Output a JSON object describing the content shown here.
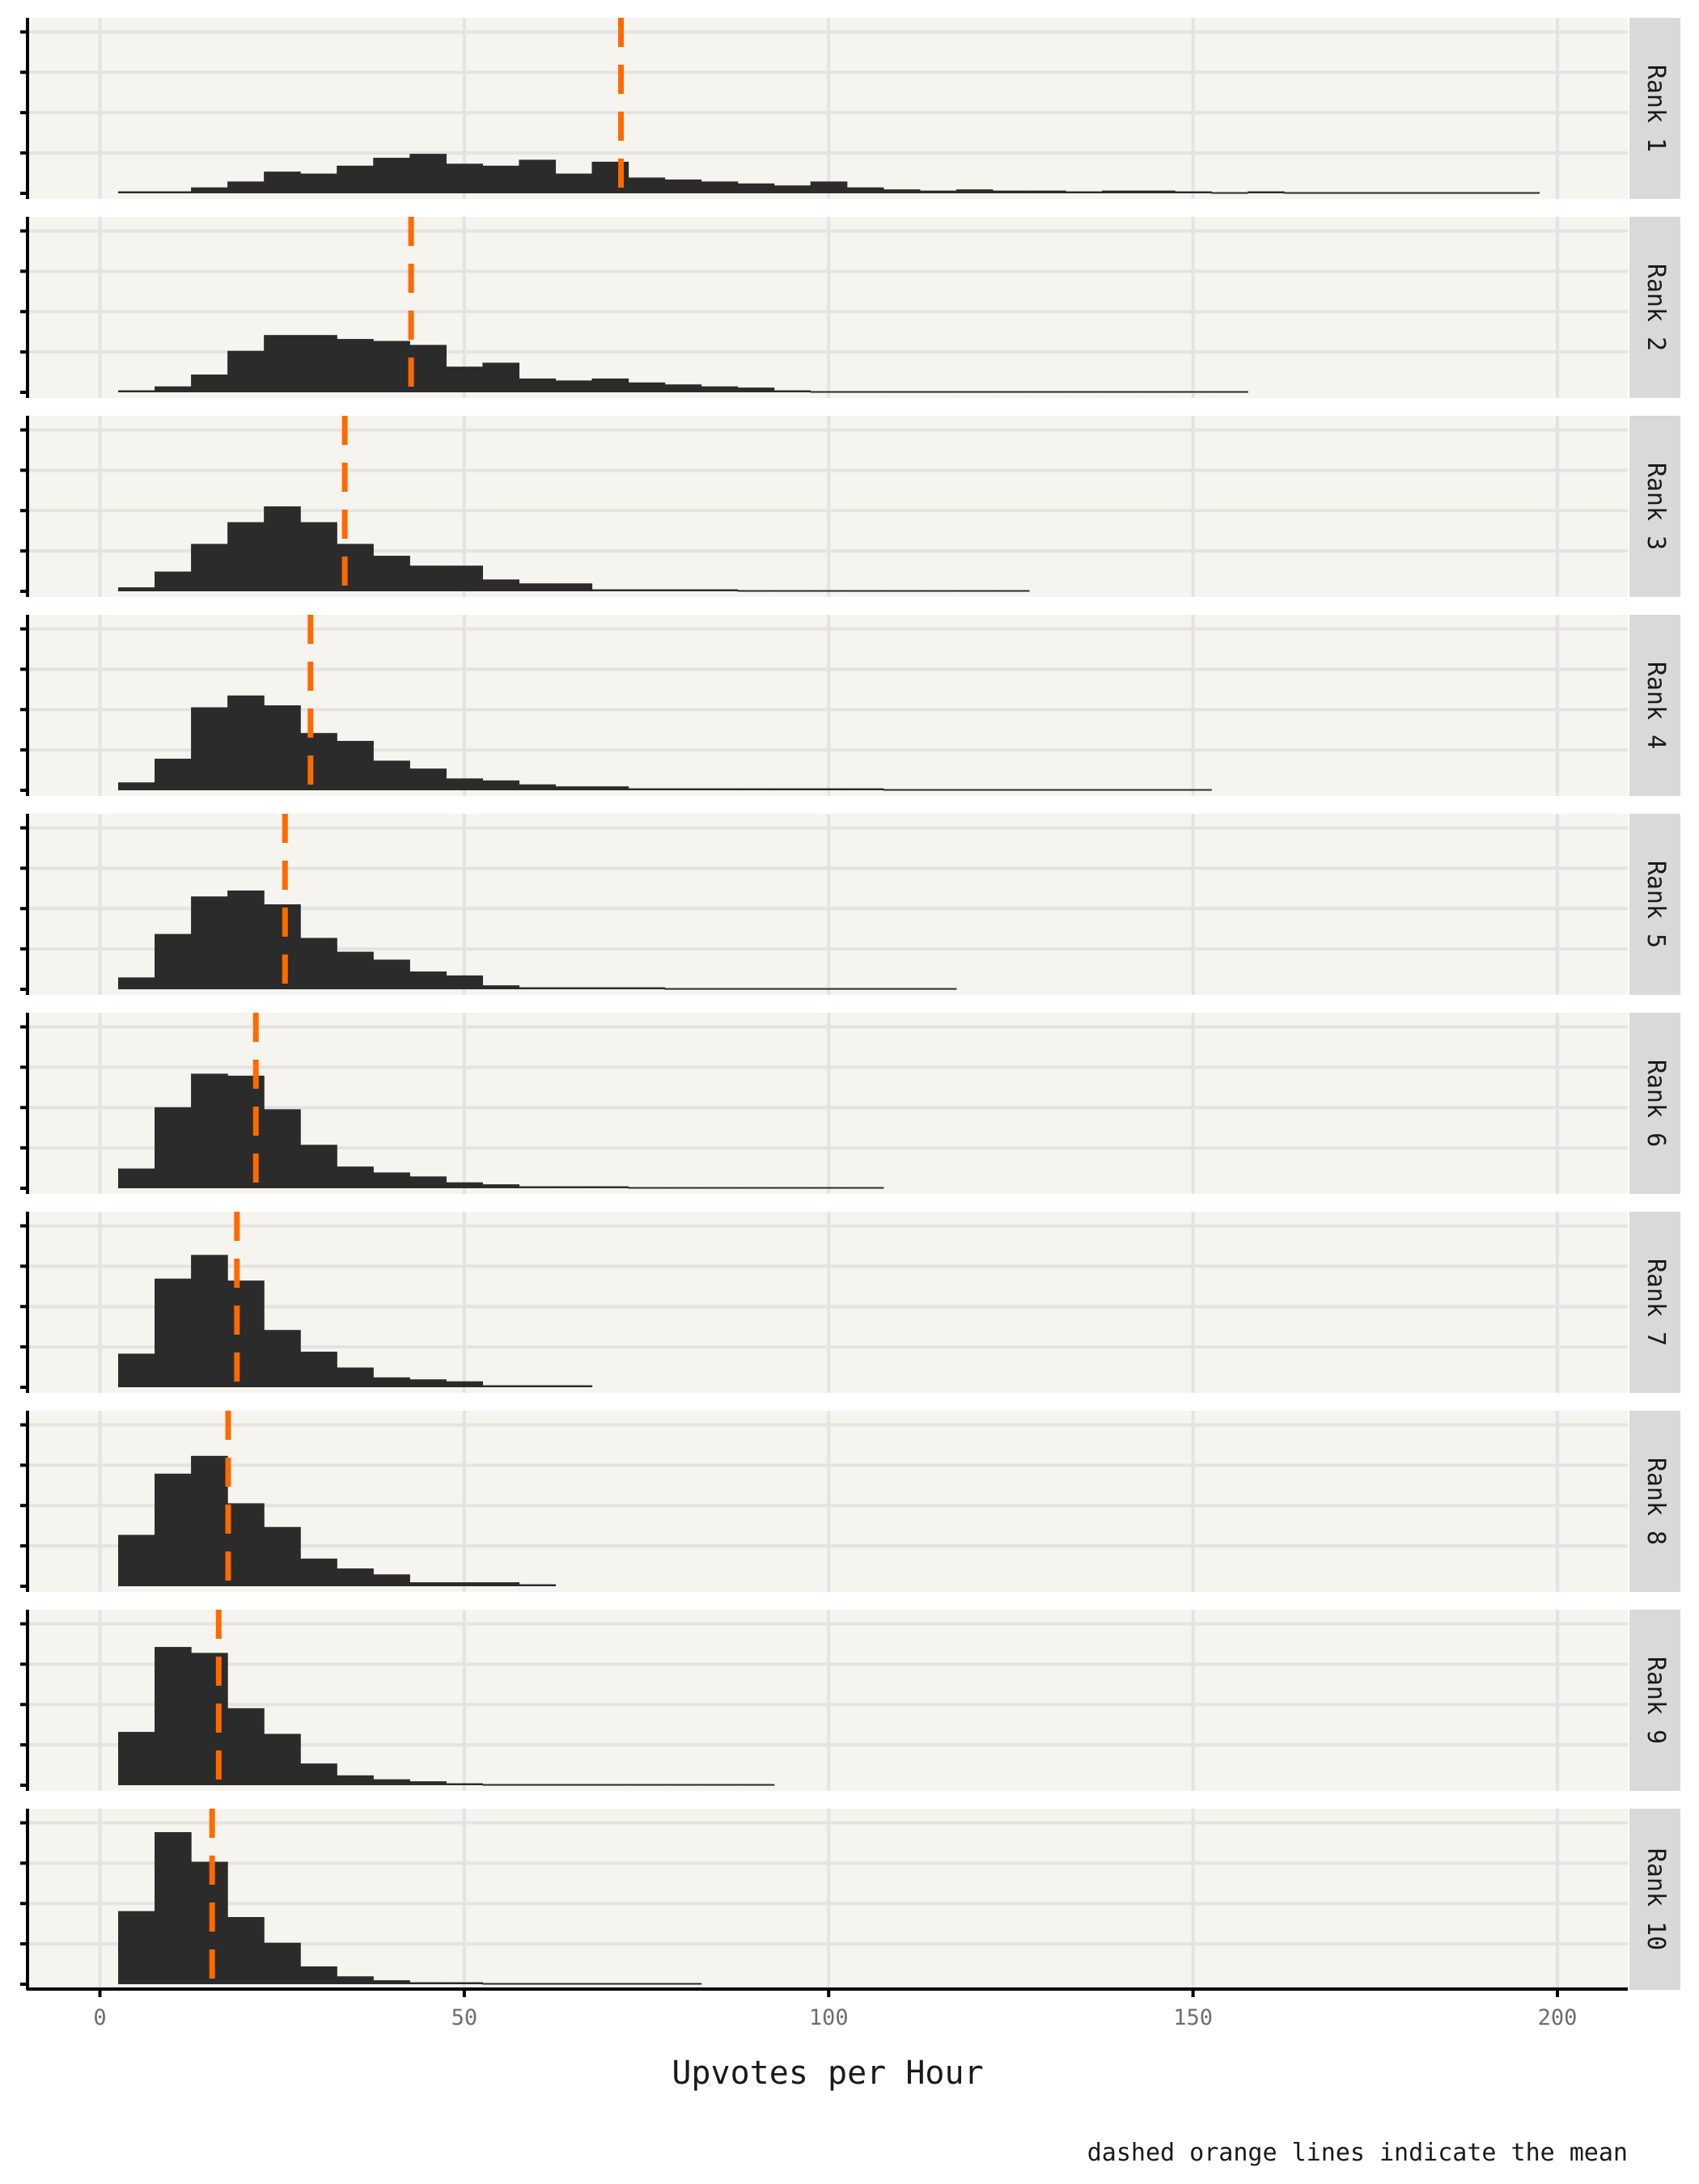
{
  "chart_data": {
    "type": "histogram",
    "facet_layout": "vertical, one panel per rank, shared x axis, labels in right strip",
    "x_label": "Upvotes per Hour",
    "x_ticks": [
      0,
      50,
      100,
      150,
      200
    ],
    "xlim": [
      -10,
      210
    ],
    "bin_width": 5,
    "bin_start": 2.5,
    "y_axis_labels": "none",
    "caption": "dashed orange lines indicate the mean",
    "colors": {
      "bar": "#2b2b2b",
      "mean_line": "#ff6a00",
      "panel_background": "#f5f4ee",
      "strip_background": "#d9d9d9",
      "grid": "#e3e3e3"
    },
    "panels": [
      {
        "label": "Rank 1",
        "mean": 71.5,
        "ymax": 4.3,
        "counts": [
          0.05,
          0.05,
          0.15,
          0.3,
          0.55,
          0.5,
          0.7,
          0.9,
          1.0,
          0.75,
          0.7,
          0.85,
          0.5,
          0.8,
          0.4,
          0.35,
          0.3,
          0.25,
          0.2,
          0.3,
          0.15,
          0.1,
          0.07,
          0.1,
          0.07,
          0.07,
          0.05,
          0.07,
          0.07,
          0.05,
          0.03,
          0.05,
          0.03,
          0.03,
          0.03,
          0.03,
          0.03,
          0.03,
          0.03
        ]
      },
      {
        "label": "Rank 2",
        "mean": 42.7,
        "ymax": 4.3,
        "counts": [
          0.05,
          0.15,
          0.45,
          1.05,
          1.45,
          1.45,
          1.35,
          1.3,
          1.2,
          0.65,
          0.75,
          0.35,
          0.3,
          0.35,
          0.25,
          0.2,
          0.15,
          0.12,
          0.05,
          0.03,
          0.03,
          0.03,
          0.03,
          0.03,
          0.03,
          0.03,
          0.03,
          0.03,
          0.03,
          0.03,
          0.03
        ]
      },
      {
        "label": "Rank 3",
        "mean": 33.6,
        "ymax": 4.3,
        "counts": [
          0.1,
          0.5,
          1.2,
          1.75,
          2.15,
          1.75,
          1.2,
          0.9,
          0.65,
          0.65,
          0.3,
          0.2,
          0.2,
          0.05,
          0.05,
          0.05,
          0.05,
          0.03,
          0.03,
          0.03,
          0.03,
          0.03,
          0.03,
          0.03,
          0.03
        ]
      },
      {
        "label": "Rank 4",
        "mean": 28.9,
        "ymax": 4.3,
        "counts": [
          0.2,
          0.8,
          2.1,
          2.4,
          2.15,
          1.45,
          1.25,
          0.75,
          0.55,
          0.3,
          0.25,
          0.15,
          0.1,
          0.1,
          0.05,
          0.05,
          0.05,
          0.05,
          0.05,
          0.05,
          0.05,
          0.03,
          0.03,
          0.03,
          0.03,
          0.03,
          0.03,
          0.03,
          0.03,
          0.03
        ]
      },
      {
        "label": "Rank 5",
        "mean": 25.4,
        "ymax": 4.3,
        "counts": [
          0.3,
          1.4,
          2.35,
          2.5,
          2.15,
          1.3,
          0.95,
          0.75,
          0.45,
          0.35,
          0.1,
          0.05,
          0.05,
          0.05,
          0.05,
          0.03,
          0.03,
          0.03,
          0.03,
          0.03,
          0.03,
          0.03,
          0.03
        ]
      },
      {
        "label": "Rank 6",
        "mean": 21.4,
        "ymax": 4.3,
        "counts": [
          0.5,
          2.05,
          2.9,
          2.85,
          2.0,
          1.1,
          0.55,
          0.4,
          0.3,
          0.15,
          0.1,
          0.05,
          0.05,
          0.05,
          0.03,
          0.03,
          0.03,
          0.03,
          0.03,
          0.03,
          0.03
        ]
      },
      {
        "label": "Rank 7",
        "mean": 18.8,
        "ymax": 4.3,
        "counts": [
          0.85,
          2.75,
          3.35,
          2.7,
          1.45,
          0.9,
          0.5,
          0.25,
          0.2,
          0.15,
          0.05,
          0.05,
          0.05
        ]
      },
      {
        "label": "Rank 8",
        "mean": 17.6,
        "ymax": 4.3,
        "counts": [
          1.3,
          2.85,
          3.3,
          2.1,
          1.5,
          0.7,
          0.45,
          0.3,
          0.1,
          0.1,
          0.1,
          0.05
        ]
      },
      {
        "label": "Rank 9",
        "mean": 16.3,
        "ymax": 4.3,
        "counts": [
          1.35,
          3.5,
          3.35,
          1.95,
          1.3,
          0.55,
          0.25,
          0.15,
          0.1,
          0.05,
          0.03,
          0.03,
          0.03,
          0.03,
          0.03,
          0.03,
          0.03,
          0.03
        ]
      },
      {
        "label": "Rank 10",
        "mean": 15.4,
        "ymax": 4.3,
        "counts": [
          1.85,
          3.85,
          3.1,
          1.7,
          1.05,
          0.45,
          0.2,
          0.1,
          0.05,
          0.05,
          0.03,
          0.03,
          0.03,
          0.03,
          0.03,
          0.03
        ]
      }
    ]
  }
}
